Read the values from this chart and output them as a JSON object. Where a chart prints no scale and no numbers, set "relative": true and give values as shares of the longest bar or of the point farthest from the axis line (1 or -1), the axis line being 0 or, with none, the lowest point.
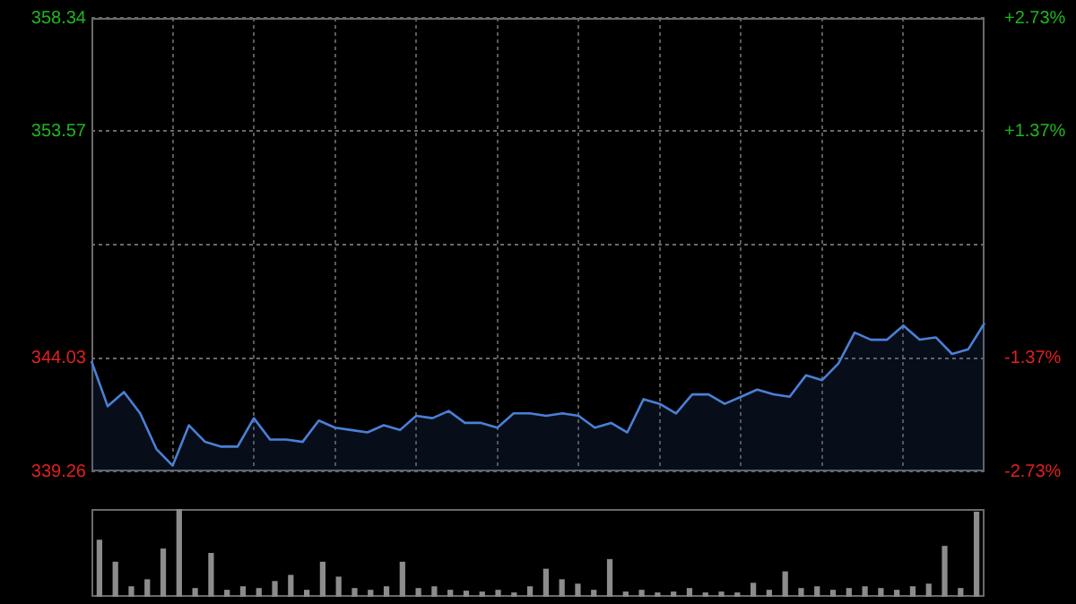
{
  "chart_data": [
    {
      "type": "area",
      "categories": [
        null,
        null,
        null,
        null,
        null,
        null,
        null,
        null,
        null,
        null,
        null,
        null,
        null,
        null,
        null,
        null,
        null,
        null,
        null,
        null,
        null,
        null,
        null,
        null,
        null,
        null,
        null,
        null,
        null,
        null,
        null,
        null,
        null,
        null,
        null,
        null,
        null,
        null,
        null,
        null,
        null,
        null,
        null,
        null,
        null,
        null,
        null,
        null,
        null,
        null,
        null,
        null,
        null,
        null,
        null,
        null
      ],
      "series": [
        {
          "color": "#4a80d6",
          "values": [
            343.9,
            342.0,
            342.6,
            341.7,
            340.2,
            339.5,
            341.2,
            340.5,
            340.3,
            340.3,
            341.5,
            340.6,
            340.6,
            340.5,
            341.4,
            341.1,
            341.0,
            340.9,
            341.2,
            341.0,
            341.6,
            341.5,
            341.8,
            341.3,
            341.3,
            341.1,
            341.7,
            341.7,
            341.6,
            341.7,
            341.6,
            341.1,
            341.3,
            340.9,
            342.3,
            342.1,
            341.7,
            342.5,
            342.5,
            342.1,
            342.4,
            342.7,
            342.5,
            342.4,
            343.3,
            343.1,
            343.8,
            345.1,
            344.8,
            344.8,
            345.4,
            344.8,
            344.9,
            344.2,
            344.4,
            345.5
          ]
        }
      ],
      "ylim": [
        339.26,
        358.34
      ],
      "yticks": [
        339.26,
        344.03,
        {
          "value": 348.8,
          "label": null
        },
        353.57,
        358.34
      ],
      "y2lim": [
        -2.73,
        2.73
      ],
      "y2ticks": [
        {
          "value": -2.73,
          "label": "-2.73%"
        },
        {
          "value": -1.37,
          "label": "-1.37%"
        },
        {
          "value": 0,
          "label": null
        },
        {
          "value": 1.37,
          "label": "+1.37%"
        },
        {
          "value": 2.73,
          "label": "+2.73%"
        }
      ],
      "grid": true,
      "legend": false,
      "tick_labels": "y",
      "marker": "none",
      "line_style": "solid"
    },
    {
      "type": "bar",
      "relative": true,
      "categories": [
        null,
        null,
        null,
        null,
        null,
        null,
        null,
        null,
        null,
        null,
        null,
        null,
        null,
        null,
        null,
        null,
        null,
        null,
        null,
        null,
        null,
        null,
        null,
        null,
        null,
        null,
        null,
        null,
        null,
        null,
        null,
        null,
        null,
        null,
        null,
        null,
        null,
        null,
        null,
        null,
        null,
        null,
        null,
        null,
        null,
        null,
        null,
        null,
        null,
        null,
        null,
        null,
        null,
        null,
        null,
        null
      ],
      "series": [
        {
          "color": "#8c8c8c",
          "values": [
            0.65,
            0.4,
            0.12,
            0.2,
            0.55,
            1,
            0.1,
            0.5,
            0.08,
            0.12,
            0.1,
            0.18,
            0.25,
            0.08,
            0.4,
            0.23,
            0.1,
            0.08,
            0.12,
            0.4,
            0.1,
            0.12,
            0.08,
            0.07,
            0.06,
            0.08,
            0.05,
            0.12,
            0.32,
            0.2,
            0.15,
            0.08,
            0.43,
            0.06,
            0.08,
            0.05,
            0.06,
            0.1,
            0.05,
            0.06,
            0.05,
            0.16,
            0.08,
            0.29,
            0.1,
            0.12,
            0.08,
            0.1,
            0.12,
            0.1,
            0.08,
            0.12,
            0.15,
            0.58,
            0.1,
            0.97
          ]
        }
      ],
      "legend": false
    }
  ]
}
